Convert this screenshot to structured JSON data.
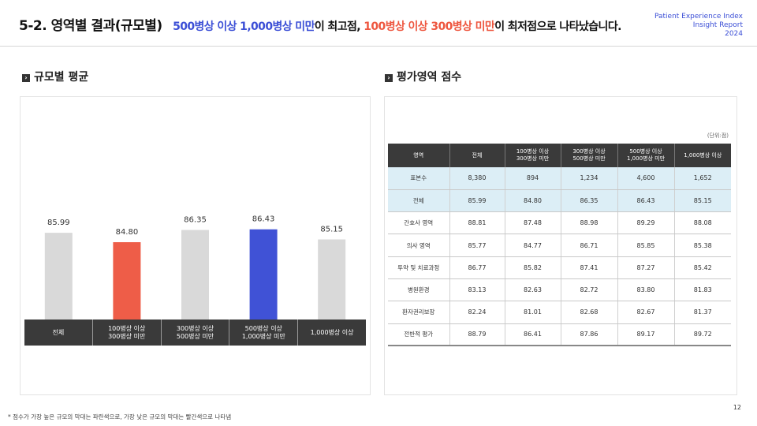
{
  "header": {
    "title_main": "5-2. 영역별 결과(규모별)",
    "title_sub_part1": "500병상 이상 1,000병상 미만",
    "title_sub_part2": "이 최고점, ",
    "title_sub_part3": "100병상 이상 300병상 미만",
    "title_sub_part4": "이 최저점으로 나타났습니다.",
    "brand_line1": "Patient Experience Index",
    "brand_line2": "Insight Report",
    "brand_line3": "2024"
  },
  "sections": {
    "left_title": "규모별 평균",
    "right_title": "평가영역 점수"
  },
  "colors": {
    "default_bar": "#d9d9d9",
    "min_bar": "#ee5d48",
    "max_bar": "#4052d6",
    "accent_blue": "#3c4fd6",
    "accent_red": "#ee5740"
  },
  "chart_data": {
    "type": "bar",
    "categories": [
      "전체",
      "100병상 이상\n300병상 미만",
      "300병상 이상\n500병상 미만",
      "500병상 이상\n1,000병상 미만",
      "1,000병상 이상"
    ],
    "values": [
      85.99,
      84.8,
      86.35,
      86.43,
      85.15
    ],
    "highlight": [
      "default",
      "min",
      "default",
      "max",
      "default"
    ],
    "ylim": [
      0,
      100
    ],
    "title": "",
    "xlabel": "",
    "ylabel": ""
  },
  "table": {
    "unit": "(단위:점)",
    "headers": [
      "영역",
      "전체",
      "100병상 이상\n300병상 미만",
      "300병상 이상\n500병상 미만",
      "500병상 이상\n1,000병상 미만",
      "1,000병상 이상"
    ],
    "rows": [
      {
        "label": "표본수",
        "values": [
          "8,380",
          "894",
          "1,234",
          "4,600",
          "1,652"
        ],
        "highlight": true
      },
      {
        "label": "전체",
        "values": [
          "85.99",
          "84.80",
          "86.35",
          "86.43",
          "85.15"
        ],
        "highlight": true
      },
      {
        "label": "간호사 영역",
        "values": [
          "88.81",
          "87.48",
          "88.98",
          "89.29",
          "88.08"
        ],
        "highlight": false
      },
      {
        "label": "의사 영역",
        "values": [
          "85.77",
          "84.77",
          "86.71",
          "85.85",
          "85.38"
        ],
        "highlight": false
      },
      {
        "label": "투약 및 치료과정",
        "values": [
          "86.77",
          "85.82",
          "87.41",
          "87.27",
          "85.42"
        ],
        "highlight": false
      },
      {
        "label": "병원환경",
        "values": [
          "83.13",
          "82.63",
          "82.72",
          "83.80",
          "81.83"
        ],
        "highlight": false
      },
      {
        "label": "환자권리보장",
        "values": [
          "82.24",
          "81.01",
          "82.68",
          "82.67",
          "81.37"
        ],
        "highlight": false
      },
      {
        "label": "전반적 평가",
        "values": [
          "88.79",
          "86.41",
          "87.86",
          "89.17",
          "89.72"
        ],
        "highlight": false
      }
    ]
  },
  "footnote": "* 점수가 가장 높은 규모의 막대는 파란색으로, 가장 낮은 규모의 막대는 빨간색으로 나타냄",
  "page_number": "12"
}
